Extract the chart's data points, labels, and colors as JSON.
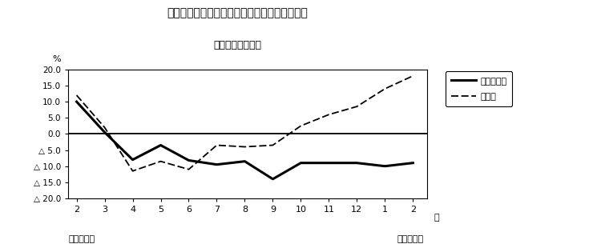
{
  "title_line1": "第２図　所定外労働時間　対前年同月比の推移",
  "title_line2": "（規樯５人以上）",
  "xlabel_months": [
    "2",
    "3",
    "4",
    "5",
    "6",
    "7",
    "8",
    "9",
    "10",
    "11",
    "12",
    "1",
    "2"
  ],
  "x_values": [
    1,
    2,
    3,
    4,
    5,
    6,
    7,
    8,
    9,
    10,
    11,
    12,
    13
  ],
  "ylabel_percent": "%",
  "series1_name": "調査産業計",
  "series1_values": [
    10.0,
    0.5,
    -8.0,
    -3.5,
    -8.2,
    -9.5,
    -8.5,
    -14.0,
    -9.0,
    -9.0,
    -9.0,
    -10.0,
    -9.0
  ],
  "series2_name": "製造業",
  "series2_values": [
    12.0,
    2.0,
    -11.5,
    -8.5,
    -11.0,
    -3.5,
    -4.0,
    -3.5,
    2.5,
    6.0,
    8.5,
    14.0,
    18.0
  ],
  "ylim_min": -20.0,
  "ylim_max": 20.0,
  "yticks": [
    20.0,
    15.0,
    10.0,
    5.0,
    0.0,
    -5.0,
    -10.0,
    -15.0,
    -20.0
  ],
  "ytick_labels": [
    "20.0",
    "15.0",
    "10.0",
    "5.0",
    "0.0",
    "△ 5.0",
    "△ 10.0",
    "△ 15.0",
    "△ 20.0"
  ],
  "bottom_left_text": "平成２３年",
  "bottom_right_text": "平成２４年",
  "month_label": "月",
  "bg_color": "#ffffff",
  "line1_color": "#000000",
  "line2_color": "#000000",
  "zero_line_color": "#000000"
}
